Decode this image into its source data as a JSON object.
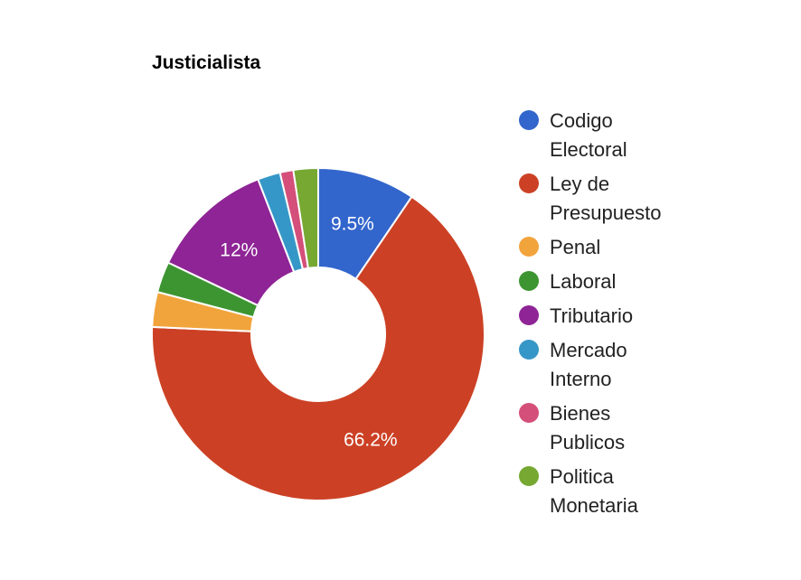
{
  "chart_data": {
    "type": "pie",
    "title": "Justicialista",
    "donut": true,
    "legend_position": "right",
    "slices": [
      {
        "label": "Codigo Electoral",
        "value": 9.5,
        "color": "#3366cc",
        "data_label": "9.5%"
      },
      {
        "label": "Ley de Presupuesto",
        "value": 66.2,
        "color": "#cc4125",
        "data_label": "66.2%"
      },
      {
        "label": "Penal",
        "value": 3.4,
        "color": "#f1a43c",
        "data_label": ""
      },
      {
        "label": "Laboral",
        "value": 3.0,
        "color": "#3d9532",
        "data_label": ""
      },
      {
        "label": "Tributario",
        "value": 12.0,
        "color": "#8e2495",
        "data_label": "12%"
      },
      {
        "label": "Mercado Interno",
        "value": 2.2,
        "color": "#3597c7",
        "data_label": ""
      },
      {
        "label": "Bienes Publicos",
        "value": 1.3,
        "color": "#d44f7a",
        "data_label": ""
      },
      {
        "label": "Politica Monetaria",
        "value": 2.4,
        "color": "#76a832",
        "data_label": ""
      }
    ]
  }
}
